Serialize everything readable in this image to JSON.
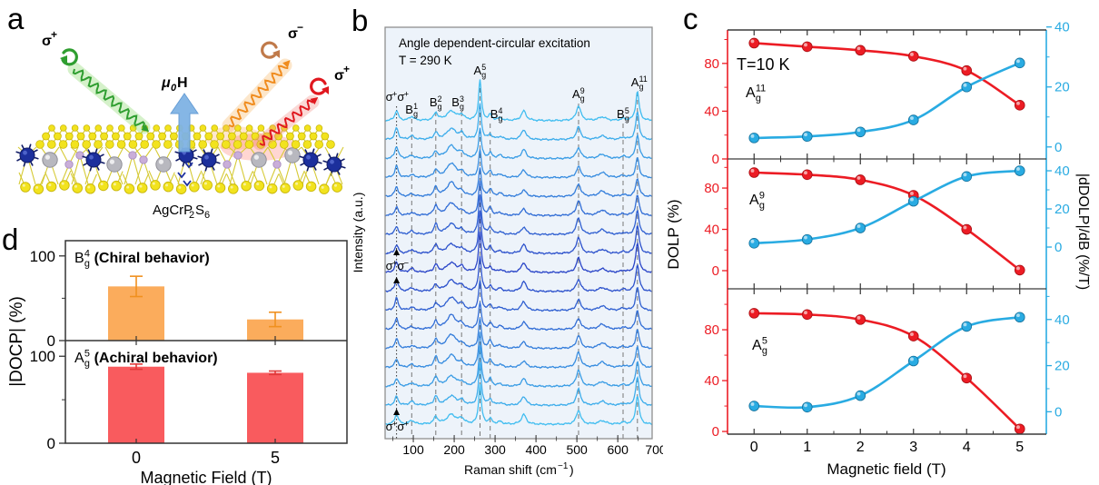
{
  "panel_letters": {
    "a": "a",
    "b": "b",
    "c": "c",
    "d": "d"
  },
  "panel_a": {
    "compound": {
      "p1": "AgCrP",
      "s1": "2",
      "p2": "S",
      "s2": "6"
    },
    "field_label": {
      "mu": "μ",
      "sub": "0",
      "tail": "H"
    },
    "beams": [
      {
        "name": "incident-sigma-plus",
        "sigma": "σ",
        "sign": "+",
        "color": "#2f9e30",
        "band": "#7fd55e"
      },
      {
        "name": "scattered-sigma-minus",
        "sigma": "σ",
        "sign": "−",
        "color": "#c07a4a",
        "band": "#f6b25e",
        "line": "#f08c1e"
      },
      {
        "name": "scattered-sigma-plus",
        "sigma": "σ",
        "sign": "+",
        "color": "#d81920",
        "band": "#f2887f",
        "line": "#e0181f"
      }
    ],
    "colors": {
      "sulfur": "#f2e31e",
      "sulfur_edge": "#c9b70b",
      "silver": "#b8b8bf",
      "silver_edge": "#8f8f97",
      "chromium": "#1c2f9c",
      "chromium_edge": "#111c66",
      "phosphorus": "#c9aed9",
      "phosphorus_edge": "#a98fc0",
      "bond": "#d6ca35",
      "field_arrow": "#7fb3e4",
      "field_arrow_edge": "#5f99d4"
    }
  },
  "chart_data": [
    {
      "id": "raman",
      "panel": "b",
      "type": "line",
      "title": "Angle dependent-circular excitation",
      "subtitle": "T = 290 K",
      "xlabel_parts": {
        "pre": "Raman shift (cm",
        "sup": "−1",
        "post": ")"
      },
      "ylabel": "Intensity (a.u.)",
      "xlim": [
        31,
        684
      ],
      "xticks": [
        100,
        200,
        300,
        400,
        500,
        600,
        700
      ],
      "n_spectra": 17,
      "peaks": [
        {
          "c": 59,
          "w": 5,
          "h": 11
        },
        {
          "c": 96,
          "w": 7,
          "h": 3.5
        },
        {
          "c": 155,
          "w": 5.5,
          "h": 9
        },
        {
          "c": 193,
          "w": 14,
          "h": 13
        },
        {
          "c": 218,
          "w": 7,
          "h": 5
        },
        {
          "c": 263,
          "w": 4,
          "h": 38
        },
        {
          "c": 288,
          "w": 5,
          "h": 7
        },
        {
          "c": 312,
          "w": 7,
          "h": 3
        },
        {
          "c": 370,
          "w": 7,
          "h": 9
        },
        {
          "c": 504,
          "w": 6.5,
          "h": 15
        },
        {
          "c": 562,
          "w": 11,
          "h": 5
        },
        {
          "c": 613,
          "w": 7,
          "h": 2
        },
        {
          "c": 648,
          "w": 5,
          "h": 26
        }
      ],
      "labeled_peaks": [
        {
          "x": 59,
          "style": "dotted",
          "sigma": [
            "+",
            "+"
          ],
          "ly": 111
        },
        {
          "x": 96,
          "mode": [
            "B",
            "g",
            "1"
          ],
          "ly": 125
        },
        {
          "x": 155,
          "mode": [
            "B",
            "g",
            "2"
          ],
          "ly": 117
        },
        {
          "x": 218,
          "mode": [
            "B",
            "g",
            "3"
          ],
          "ly": 117,
          "dx": -4
        },
        {
          "x": 263,
          "mode": [
            "A",
            "g",
            "5"
          ],
          "ly": 82
        },
        {
          "x": 288,
          "mode": [
            "B",
            "g",
            "4"
          ],
          "ly": 130,
          "dx": 7
        },
        {
          "x": 504,
          "mode": [
            "A",
            "g",
            "9"
          ],
          "ly": 108
        },
        {
          "x": 613,
          "mode": [
            "B",
            "g",
            "5"
          ],
          "ly": 130
        },
        {
          "x": 648,
          "mode": [
            "A",
            "g",
            "11"
          ],
          "ly": 95
        }
      ],
      "mid_annotation": {
        "sigma": [
          "+",
          "−"
        ],
        "y": 297
      },
      "bottom_annotation": {
        "sigma": [
          "+",
          "+"
        ],
        "y": 474
      },
      "colors": {
        "light": "#41bdf0",
        "dark": "#2b46c8",
        "bg": "#edf3fa",
        "frame": "#8f8f8f",
        "dash": "#777777",
        "dot": "#333333"
      }
    },
    {
      "id": "dolp",
      "panel": "c",
      "type": "line",
      "xlabel": "Magnetic field (T)",
      "ylabel_left": "DOLP (%)",
      "ylabel_right": "|dDOLP|/dB (%/T)",
      "annotation": "T=10 K",
      "x": [
        0,
        1,
        2,
        3,
        4,
        5
      ],
      "xlim": [
        -0.5,
        5.5
      ],
      "left_ticks": [
        0,
        40,
        80
      ],
      "right_ticks": [
        0,
        20,
        40
      ],
      "colors": {
        "red": "#ec1c24",
        "red_edge": "#a80f14",
        "blue": "#29abe2",
        "blue_edge": "#14719c",
        "frame": "#3a3a3a"
      },
      "subpanels": [
        {
          "mode": [
            "A",
            "g",
            "11"
          ],
          "dolp": [
            97,
            94,
            91,
            86,
            74,
            45
          ],
          "ddolp": [
            3,
            3.5,
            5,
            9,
            20,
            28
          ],
          "left_ylim": [
            0,
            108
          ],
          "right_ylim": [
            -4,
            39
          ]
        },
        {
          "mode": [
            "A",
            "g",
            "9"
          ],
          "dolp": [
            95,
            93,
            88,
            73,
            40,
            0.5
          ],
          "ddolp": [
            2,
            4,
            10,
            24,
            37,
            40
          ],
          "left_ylim": [
            -17.6,
            108.2
          ],
          "right_ylim": [
            -21.9,
            46.2
          ]
        },
        {
          "mode": [
            "A",
            "g",
            "5"
          ],
          "dolp": [
            93,
            92,
            88,
            75,
            42,
            2
          ],
          "ddolp": [
            2.5,
            2,
            7,
            22,
            37,
            41
          ],
          "left_ylim": [
            -2.1,
            112.2
          ],
          "right_ylim": [
            -9.7,
            53.3
          ]
        }
      ]
    },
    {
      "id": "docp",
      "panel": "d",
      "type": "bar",
      "xlabel": "Magnetic Field (T)",
      "ylabel": "|DOCP| (%)",
      "categories": [
        "0",
        "5"
      ],
      "yticks": [
        0,
        100
      ],
      "ylim": [
        0,
        118
      ],
      "subpanels": [
        {
          "mode": [
            "B",
            "g",
            "4"
          ],
          "desc": "(Chiral behavior)",
          "values": [
            64,
            25
          ],
          "errors": [
            12,
            8.5
          ],
          "bar_color": "#FBAC5C",
          "err_color": "#F0901F"
        },
        {
          "mode": [
            "A",
            "g",
            "5"
          ],
          "desc": "(Achiral behavior)",
          "values": [
            88,
            81
          ],
          "errors": [
            3,
            2
          ],
          "bar_color": "#F95B5E",
          "err_color": "#E03A3A"
        }
      ]
    }
  ]
}
